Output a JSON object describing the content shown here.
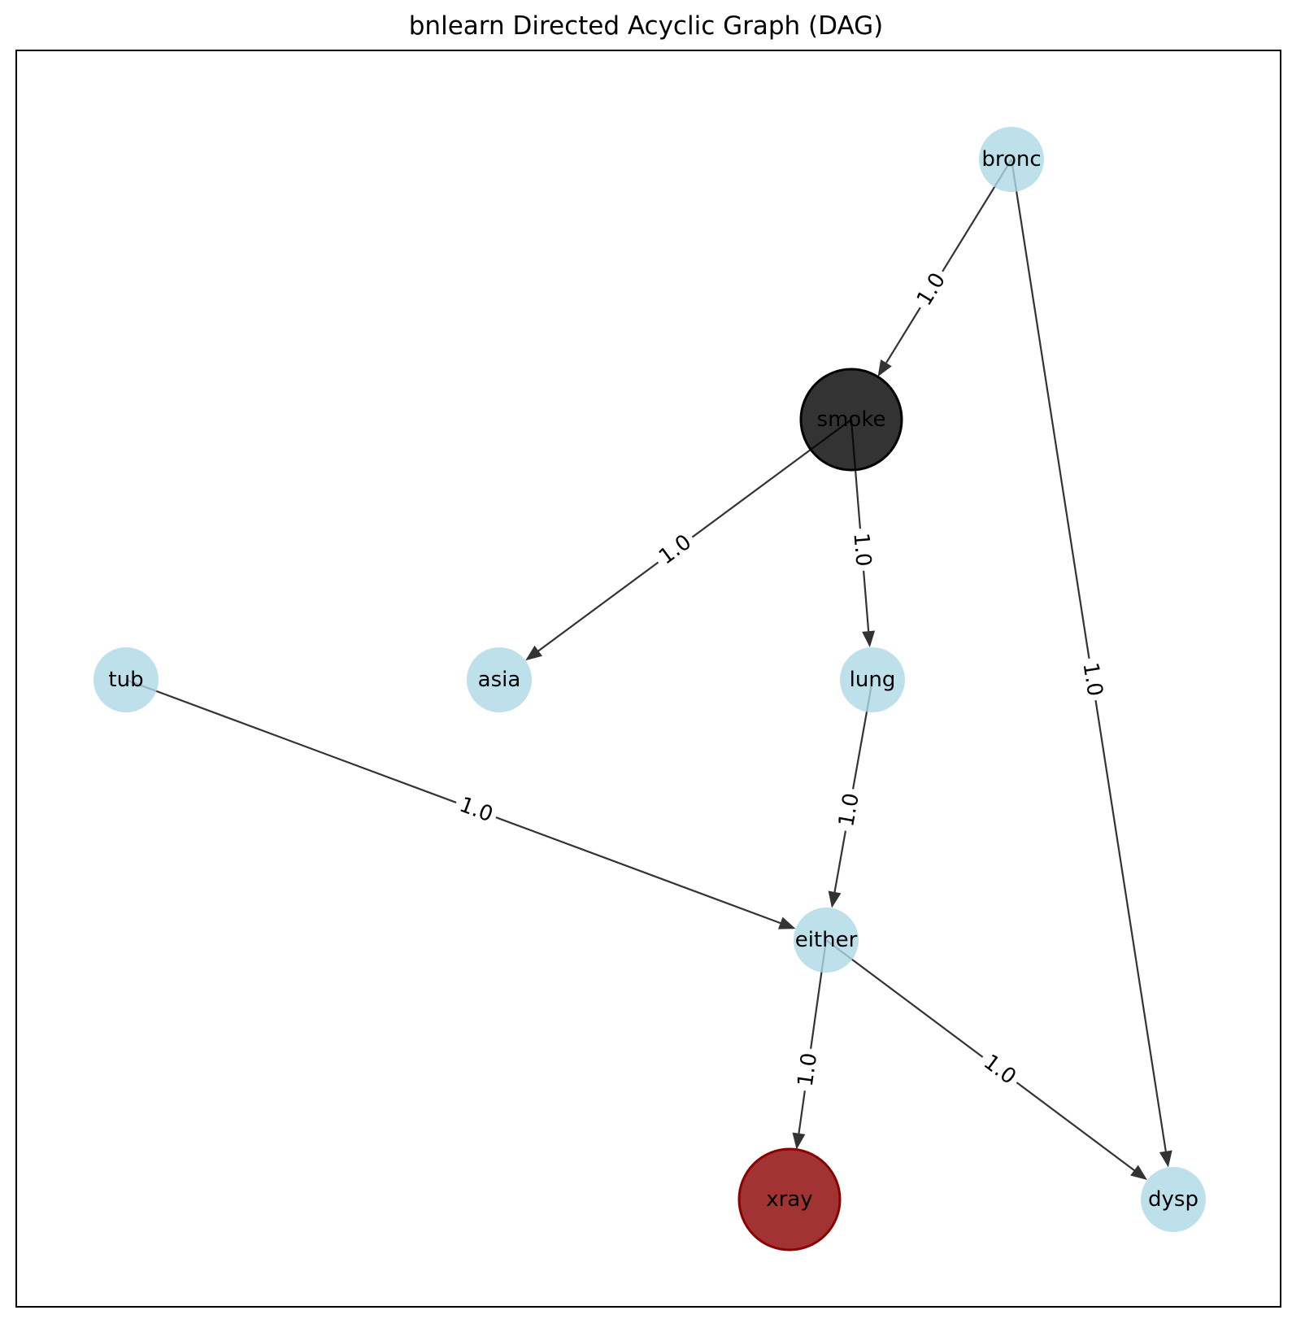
{
  "title": "bnlearn Directed Acyclic Graph (DAG)",
  "colors": {
    "default_node": "#add8e6",
    "smoke_node": "#000000",
    "xray_node": "#8b0000",
    "edge": "#000000",
    "frame": "#000000"
  },
  "nodes": [
    {
      "id": "bronc",
      "label": "bronc",
      "color": "#add8e6"
    },
    {
      "id": "smoke",
      "label": "smoke",
      "color": "#000000",
      "emphasized": true
    },
    {
      "id": "tub",
      "label": "tub",
      "color": "#add8e6"
    },
    {
      "id": "asia",
      "label": "asia",
      "color": "#add8e6"
    },
    {
      "id": "lung",
      "label": "lung",
      "color": "#add8e6"
    },
    {
      "id": "either",
      "label": "either",
      "color": "#add8e6"
    },
    {
      "id": "xray",
      "label": "xray",
      "color": "#8b0000",
      "emphasized": true
    },
    {
      "id": "dysp",
      "label": "dysp",
      "color": "#add8e6"
    }
  ],
  "edges": [
    {
      "from": "bronc",
      "to": "smoke",
      "weight": "1.0"
    },
    {
      "from": "bronc",
      "to": "dysp",
      "weight": "1.0"
    },
    {
      "from": "smoke",
      "to": "asia",
      "weight": "1.0"
    },
    {
      "from": "smoke",
      "to": "lung",
      "weight": "1.0"
    },
    {
      "from": "tub",
      "to": "either",
      "weight": "1.0"
    },
    {
      "from": "lung",
      "to": "either",
      "weight": "1.0"
    },
    {
      "from": "either",
      "to": "xray",
      "weight": "1.0"
    },
    {
      "from": "either",
      "to": "dysp",
      "weight": "1.0"
    }
  ]
}
